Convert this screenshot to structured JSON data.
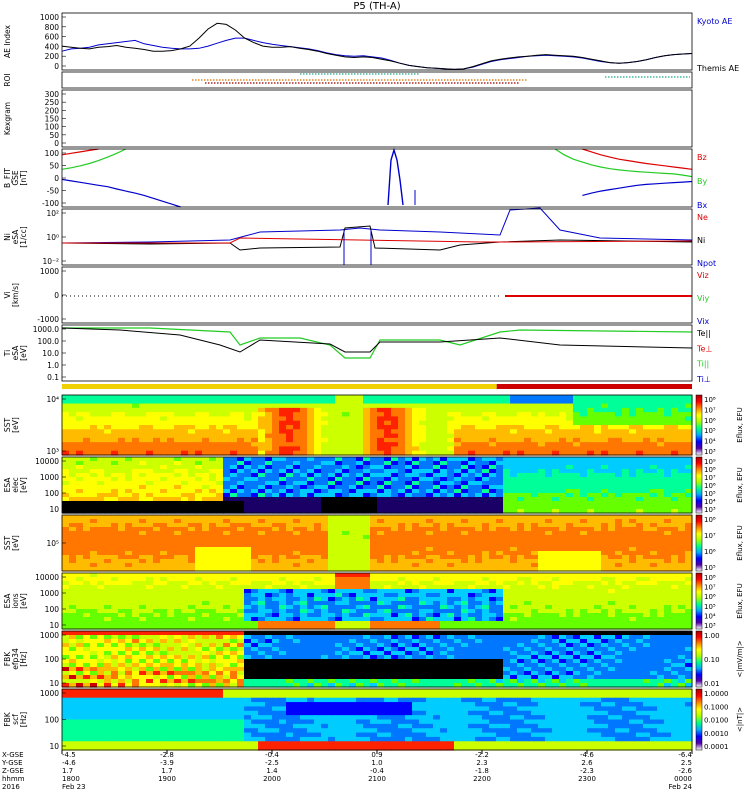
{
  "title": "P5 (TH-A)",
  "colors": {
    "black": "#000000",
    "red": "#dd0000",
    "green": "#22cc22",
    "blue": "#0000cc",
    "bar_yellow": "#f0d000",
    "bar_red": "#cc0000"
  },
  "chart_data": [
    {
      "type": "line",
      "panel": "ae",
      "ylabel": "AE Index",
      "yticks": [
        "1000",
        "800",
        "600",
        "400",
        "200",
        "0"
      ],
      "ylim": [
        0,
        1000
      ],
      "legend": [
        {
          "label": "Kyoto AE",
          "color": "#0000cc"
        },
        {
          "label": "Themis AE",
          "color": "#000000"
        }
      ],
      "series": [
        {
          "name": "Kyoto AE",
          "values": [
            330,
            370,
            380,
            400,
            440,
            460,
            480,
            500,
            520,
            460,
            430,
            400,
            380,
            370,
            370,
            380,
            420,
            470,
            520,
            560,
            560,
            520,
            480,
            450,
            430,
            410,
            390,
            370,
            340,
            300,
            270,
            250,
            240,
            250,
            230,
            210,
            170,
            120,
            80,
            60,
            40,
            30,
            20,
            10,
            20,
            50,
            100,
            150,
            180,
            200,
            220,
            240,
            250,
            260,
            250,
            240,
            230,
            210,
            180,
            150,
            130,
            120,
            130,
            150,
            180,
            220,
            250,
            270,
            280,
            290
          ]
        },
        {
          "name": "Themis AE",
          "values": [
            420,
            400,
            380,
            370,
            400,
            410,
            430,
            400,
            380,
            360,
            330,
            330,
            340,
            370,
            420,
            560,
            720,
            820,
            800,
            700,
            560,
            480,
            420,
            400,
            400,
            410,
            380,
            360,
            330,
            290,
            260,
            230,
            220,
            230,
            220,
            190,
            160,
            120,
            80,
            60,
            40,
            30,
            20,
            10,
            20,
            60,
            110,
            160,
            190,
            210,
            230,
            240,
            260,
            270,
            260,
            250,
            240,
            220,
            190,
            160,
            130,
            120,
            130,
            150,
            180,
            220,
            250,
            270,
            280,
            290
          ]
        }
      ]
    },
    {
      "type": "line",
      "panel": "roi",
      "ylabel": "ROI",
      "yticks": []
    },
    {
      "type": "line",
      "panel": "kp",
      "ylabel": "Kexgram",
      "yticks": [
        "300",
        "250",
        "200",
        "150",
        "100",
        "50",
        "0"
      ],
      "ylim": [
        0,
        300
      ]
    },
    {
      "type": "line",
      "panel": "bfit",
      "ylabel": "B_FIT",
      "ylabel2": "GSE",
      "ylabel3": "[nT]",
      "yticks": [
        "100",
        "50",
        "0",
        "-50",
        "-100"
      ],
      "ylim": [
        -100,
        100
      ],
      "legend": [
        {
          "label": "Bz",
          "color": "#dd0000"
        },
        {
          "label": "By",
          "color": "#22cc22"
        },
        {
          "label": "Bx",
          "color": "#0000cc"
        }
      ],
      "series": [
        {
          "name": "Bz",
          "values": [
            80,
            85,
            90,
            95,
            100,
            null,
            null,
            null,
            null,
            null,
            null,
            null,
            null,
            null,
            null,
            null,
            null,
            null,
            null,
            null,
            null,
            null,
            null,
            null,
            null,
            null,
            null,
            null,
            null,
            null,
            null,
            null,
            null,
            null,
            null,
            null,
            null,
            null,
            null,
            null,
            null,
            null,
            null,
            null,
            null,
            null,
            null,
            null,
            null,
            null,
            null,
            null,
            null,
            null,
            null,
            null,
            null,
            100,
            90,
            80,
            72,
            65,
            60,
            55,
            50,
            46,
            42,
            38,
            34,
            30
          ]
        },
        {
          "name": "By",
          "values": [
            30,
            35,
            42,
            50,
            60,
            72,
            85,
            100,
            null,
            null,
            null,
            null,
            null,
            null,
            null,
            null,
            null,
            null,
            null,
            null,
            null,
            null,
            null,
            null,
            null,
            null,
            null,
            null,
            null,
            null,
            null,
            null,
            null,
            null,
            null,
            null,
            null,
            null,
            null,
            null,
            null,
            null,
            null,
            null,
            null,
            null,
            null,
            null,
            null,
            null,
            null,
            null,
            null,
            null,
            100,
            80,
            65,
            55,
            45,
            38,
            32,
            28,
            25,
            22,
            20,
            18,
            16,
            14,
            10,
            5
          ]
        },
        {
          "name": "Bx",
          "values": [
            -5,
            -10,
            -15,
            -20,
            -25,
            -30,
            -38,
            -45,
            -52,
            -60,
            -70,
            -80,
            -90,
            -100,
            null,
            null,
            null,
            null,
            null,
            null,
            null,
            null,
            null,
            null,
            null,
            null,
            null,
            null,
            null,
            null,
            null,
            null,
            null,
            null,
            null,
            null,
            null,
            null,
            null,
            null,
            null,
            null,
            null,
            null,
            null,
            null,
            null,
            null,
            null,
            null,
            null,
            null,
            null,
            null,
            null,
            null,
            null,
            -60,
            -52,
            -45,
            -40,
            -35,
            -30,
            -25,
            -22,
            -20,
            -18,
            -16,
            -14,
            -12
          ]
        }
      ]
    },
    {
      "type": "line",
      "panel": "ni",
      "ylabel": "Ni",
      "ylabel2": "eSA",
      "ylabel3": "[1/cc]",
      "yticks": [
        "10²",
        "10⁰",
        "10⁻²"
      ],
      "legend": [
        {
          "label": "Ne",
          "color": "#dd0000"
        },
        {
          "label": "Ni",
          "color": "#000000"
        },
        {
          "label": "Npot",
          "color": "#0000cc"
        }
      ]
    },
    {
      "type": "line",
      "panel": "vi",
      "ylabel": "Vi",
      "ylabel2": "[km/s]",
      "yticks": [
        "1000",
        "0",
        "-1000"
      ],
      "legend": [
        {
          "label": "Viz",
          "color": "#dd0000"
        },
        {
          "label": "Viy",
          "color": "#22cc22"
        },
        {
          "label": "Vix",
          "color": "#0000cc"
        }
      ]
    },
    {
      "type": "line",
      "panel": "ti",
      "ylabel": "Ti",
      "ylabel2": "eSA",
      "ylabel3": "[eV]",
      "yticks": [
        "1000.0",
        "100.0",
        "10.0",
        "1.0",
        "0.1"
      ],
      "legend": [
        {
          "label": "Te||",
          "color": "#000000"
        },
        {
          "label": "Te⊥",
          "color": "#dd0000"
        },
        {
          "label": "Ti||",
          "color": "#22cc22"
        },
        {
          "label": "Ti⊥",
          "color": "#0000cc"
        }
      ]
    },
    {
      "type": "heatmap",
      "panel": "sst_e",
      "ylabel": "SST",
      "ylabel2": "[eV]",
      "yticks": [
        "10⁴",
        "10³"
      ],
      "cbar_label": "Eflux, EFU",
      "cbar_ticks": [
        "10⁸",
        "10⁷",
        "10⁶",
        "10⁵",
        "10⁴",
        "10³"
      ]
    },
    {
      "type": "heatmap",
      "panel": "esa_e",
      "ylabel": "ESA",
      "ylabel2": "elec",
      "ylabel3": "[eV]",
      "yticks": [
        "10000",
        "1000",
        "100",
        "10"
      ],
      "cbar_label": "Eflux, EFU",
      "cbar_ticks": [
        "10⁹",
        "10⁸",
        "10⁷",
        "10⁶",
        "10⁵",
        "10⁴",
        "10³"
      ]
    },
    {
      "type": "heatmap",
      "panel": "sst_i",
      "ylabel": "SST",
      "ylabel2": "[eV]",
      "yticks": [
        "10⁵"
      ],
      "cbar_label": "Eflux, EFU",
      "cbar_ticks": [
        "10⁸",
        "10⁷",
        "10⁶",
        "10⁵"
      ]
    },
    {
      "type": "heatmap",
      "panel": "esa_i",
      "ylabel": "ESA",
      "ylabel2": "ions",
      "ylabel3": "[eV]",
      "yticks": [
        "10000",
        "1000",
        "100",
        "10"
      ],
      "cbar_label": "Eflux, EFU",
      "cbar_ticks": [
        "10⁸",
        "10⁷",
        "10⁶",
        "10⁵",
        "10⁴",
        "10³"
      ]
    },
    {
      "type": "heatmap",
      "panel": "fbk_e",
      "ylabel": "FBK",
      "ylabel2": "efp34",
      "ylabel3": "[Hz]",
      "yticks": [
        "1000",
        "100",
        "10"
      ],
      "cbar_label": "<|mV/m|>",
      "cbar_ticks": [
        "1.00",
        "0.10",
        "0.01"
      ]
    },
    {
      "type": "heatmap",
      "panel": "fbk_b",
      "ylabel": "FBK",
      "ylabel2": "scf",
      "ylabel3": "[Hz]",
      "yticks": [
        "1000",
        "100",
        "10"
      ],
      "cbar_label": "<|nT|>",
      "cbar_ticks": [
        "1.0000",
        "0.1000",
        "0.0100",
        "0.0010",
        "0.0001"
      ]
    }
  ],
  "xaxis": {
    "row_labels": [
      "X-GSE",
      "Y-GSE",
      "Z-GSE",
      "hhmm",
      "2016"
    ],
    "ticks": [
      {
        "vals": [
          "-4.5",
          "-4.6",
          "1.7",
          "1800",
          "Feb 23"
        ]
      },
      {
        "vals": [
          "-2.8",
          "-3.9",
          "1.7",
          "1900",
          ""
        ]
      },
      {
        "vals": [
          "-0.4",
          "-2.5",
          "1.4",
          "2000",
          ""
        ]
      },
      {
        "vals": [
          "0.9",
          "1.0",
          "-0.4",
          "2100",
          ""
        ]
      },
      {
        "vals": [
          "-2.2",
          "2.3",
          "-1.8",
          "2200",
          ""
        ]
      },
      {
        "vals": [
          "-4.6",
          "2.6",
          "-2.3",
          "2300",
          ""
        ]
      },
      {
        "vals": [
          "-6.4",
          "2.5",
          "-2.6",
          "0000",
          "Feb 24"
        ]
      }
    ]
  }
}
